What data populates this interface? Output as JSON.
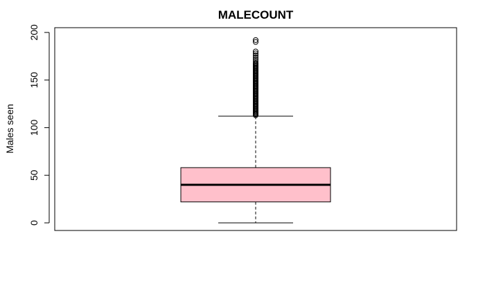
{
  "chart_data": {
    "type": "boxplot",
    "title": "MALECOUNT",
    "xlabel": "",
    "ylabel": "Males seen",
    "ylim": [
      -8,
      205
    ],
    "yticks": [
      0,
      50,
      100,
      150,
      200
    ],
    "ytick_labels": [
      "0",
      "50",
      "100",
      "150",
      "200"
    ],
    "grid": false,
    "box_color": "#FFC0CB",
    "outline_color": "#000000",
    "box": {
      "whisker_low": 0,
      "q1": 22,
      "median": 40,
      "q3": 58,
      "whisker_high": 112
    },
    "outliers": [
      113,
      114,
      115,
      116,
      117,
      118,
      119,
      120,
      121,
      122,
      123,
      124,
      125,
      126,
      127,
      128,
      129,
      130,
      131,
      132,
      133,
      134,
      135,
      136,
      137,
      138,
      139,
      140,
      141,
      142,
      143,
      144,
      145,
      146,
      147,
      148,
      149,
      150,
      151,
      152,
      153,
      154,
      155,
      156,
      157,
      158,
      159,
      160,
      161,
      162,
      163,
      164,
      165,
      166,
      167,
      168,
      170,
      172,
      174,
      176,
      178,
      180,
      190,
      192
    ]
  }
}
